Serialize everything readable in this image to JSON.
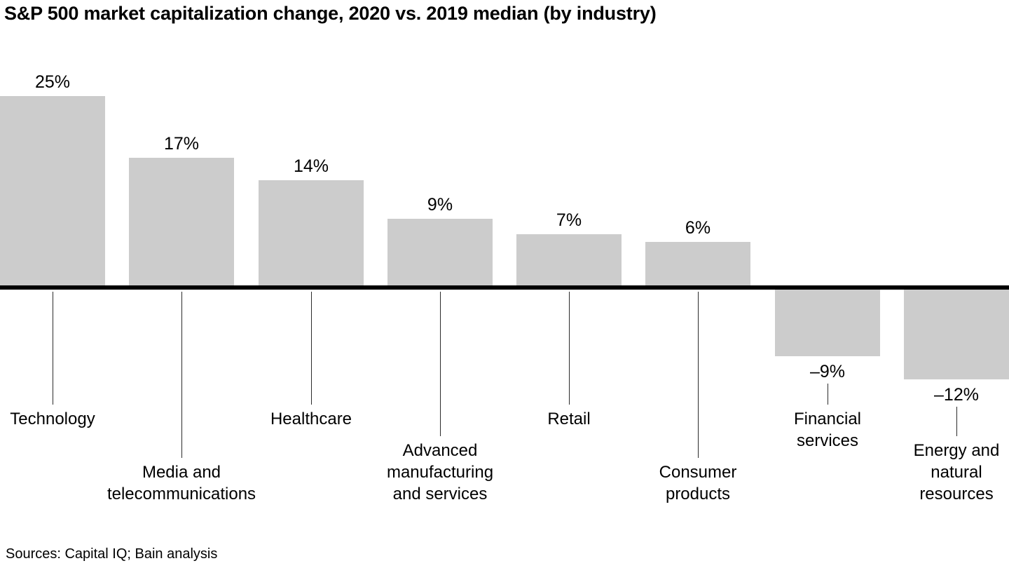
{
  "chart_data": {
    "type": "bar",
    "title": "S&P 500 market capitalization change, 2020 vs. 2019 median (by industry)",
    "categories": [
      "Technology",
      "Media and telecommunications",
      "Healthcare",
      "Advanced manufacturing and services",
      "Retail",
      "Consumer products",
      "Financial services",
      "Energy and natural resources"
    ],
    "category_lines": [
      [
        "Technology"
      ],
      [
        "Media and",
        "telecommunications"
      ],
      [
        "Healthcare"
      ],
      [
        "Advanced",
        "manufacturing",
        "and services"
      ],
      [
        "Retail"
      ],
      [
        "Consumer",
        "products"
      ],
      [
        "Financial",
        "services"
      ],
      [
        "Energy and",
        "natural",
        "resources"
      ]
    ],
    "values": [
      25,
      17,
      14,
      9,
      7,
      6,
      -9,
      -12
    ],
    "value_labels": [
      "25%",
      "17%",
      "14%",
      "9%",
      "7%",
      "6%",
      "–9%",
      "–12%"
    ],
    "ylabel": "",
    "xlabel": "",
    "ylim": [
      -15,
      28
    ],
    "grid": false,
    "legend": false,
    "bar_color": "#cccccc",
    "baseline_color": "#000000",
    "source": "Sources: Capital IQ; Bain analysis"
  }
}
